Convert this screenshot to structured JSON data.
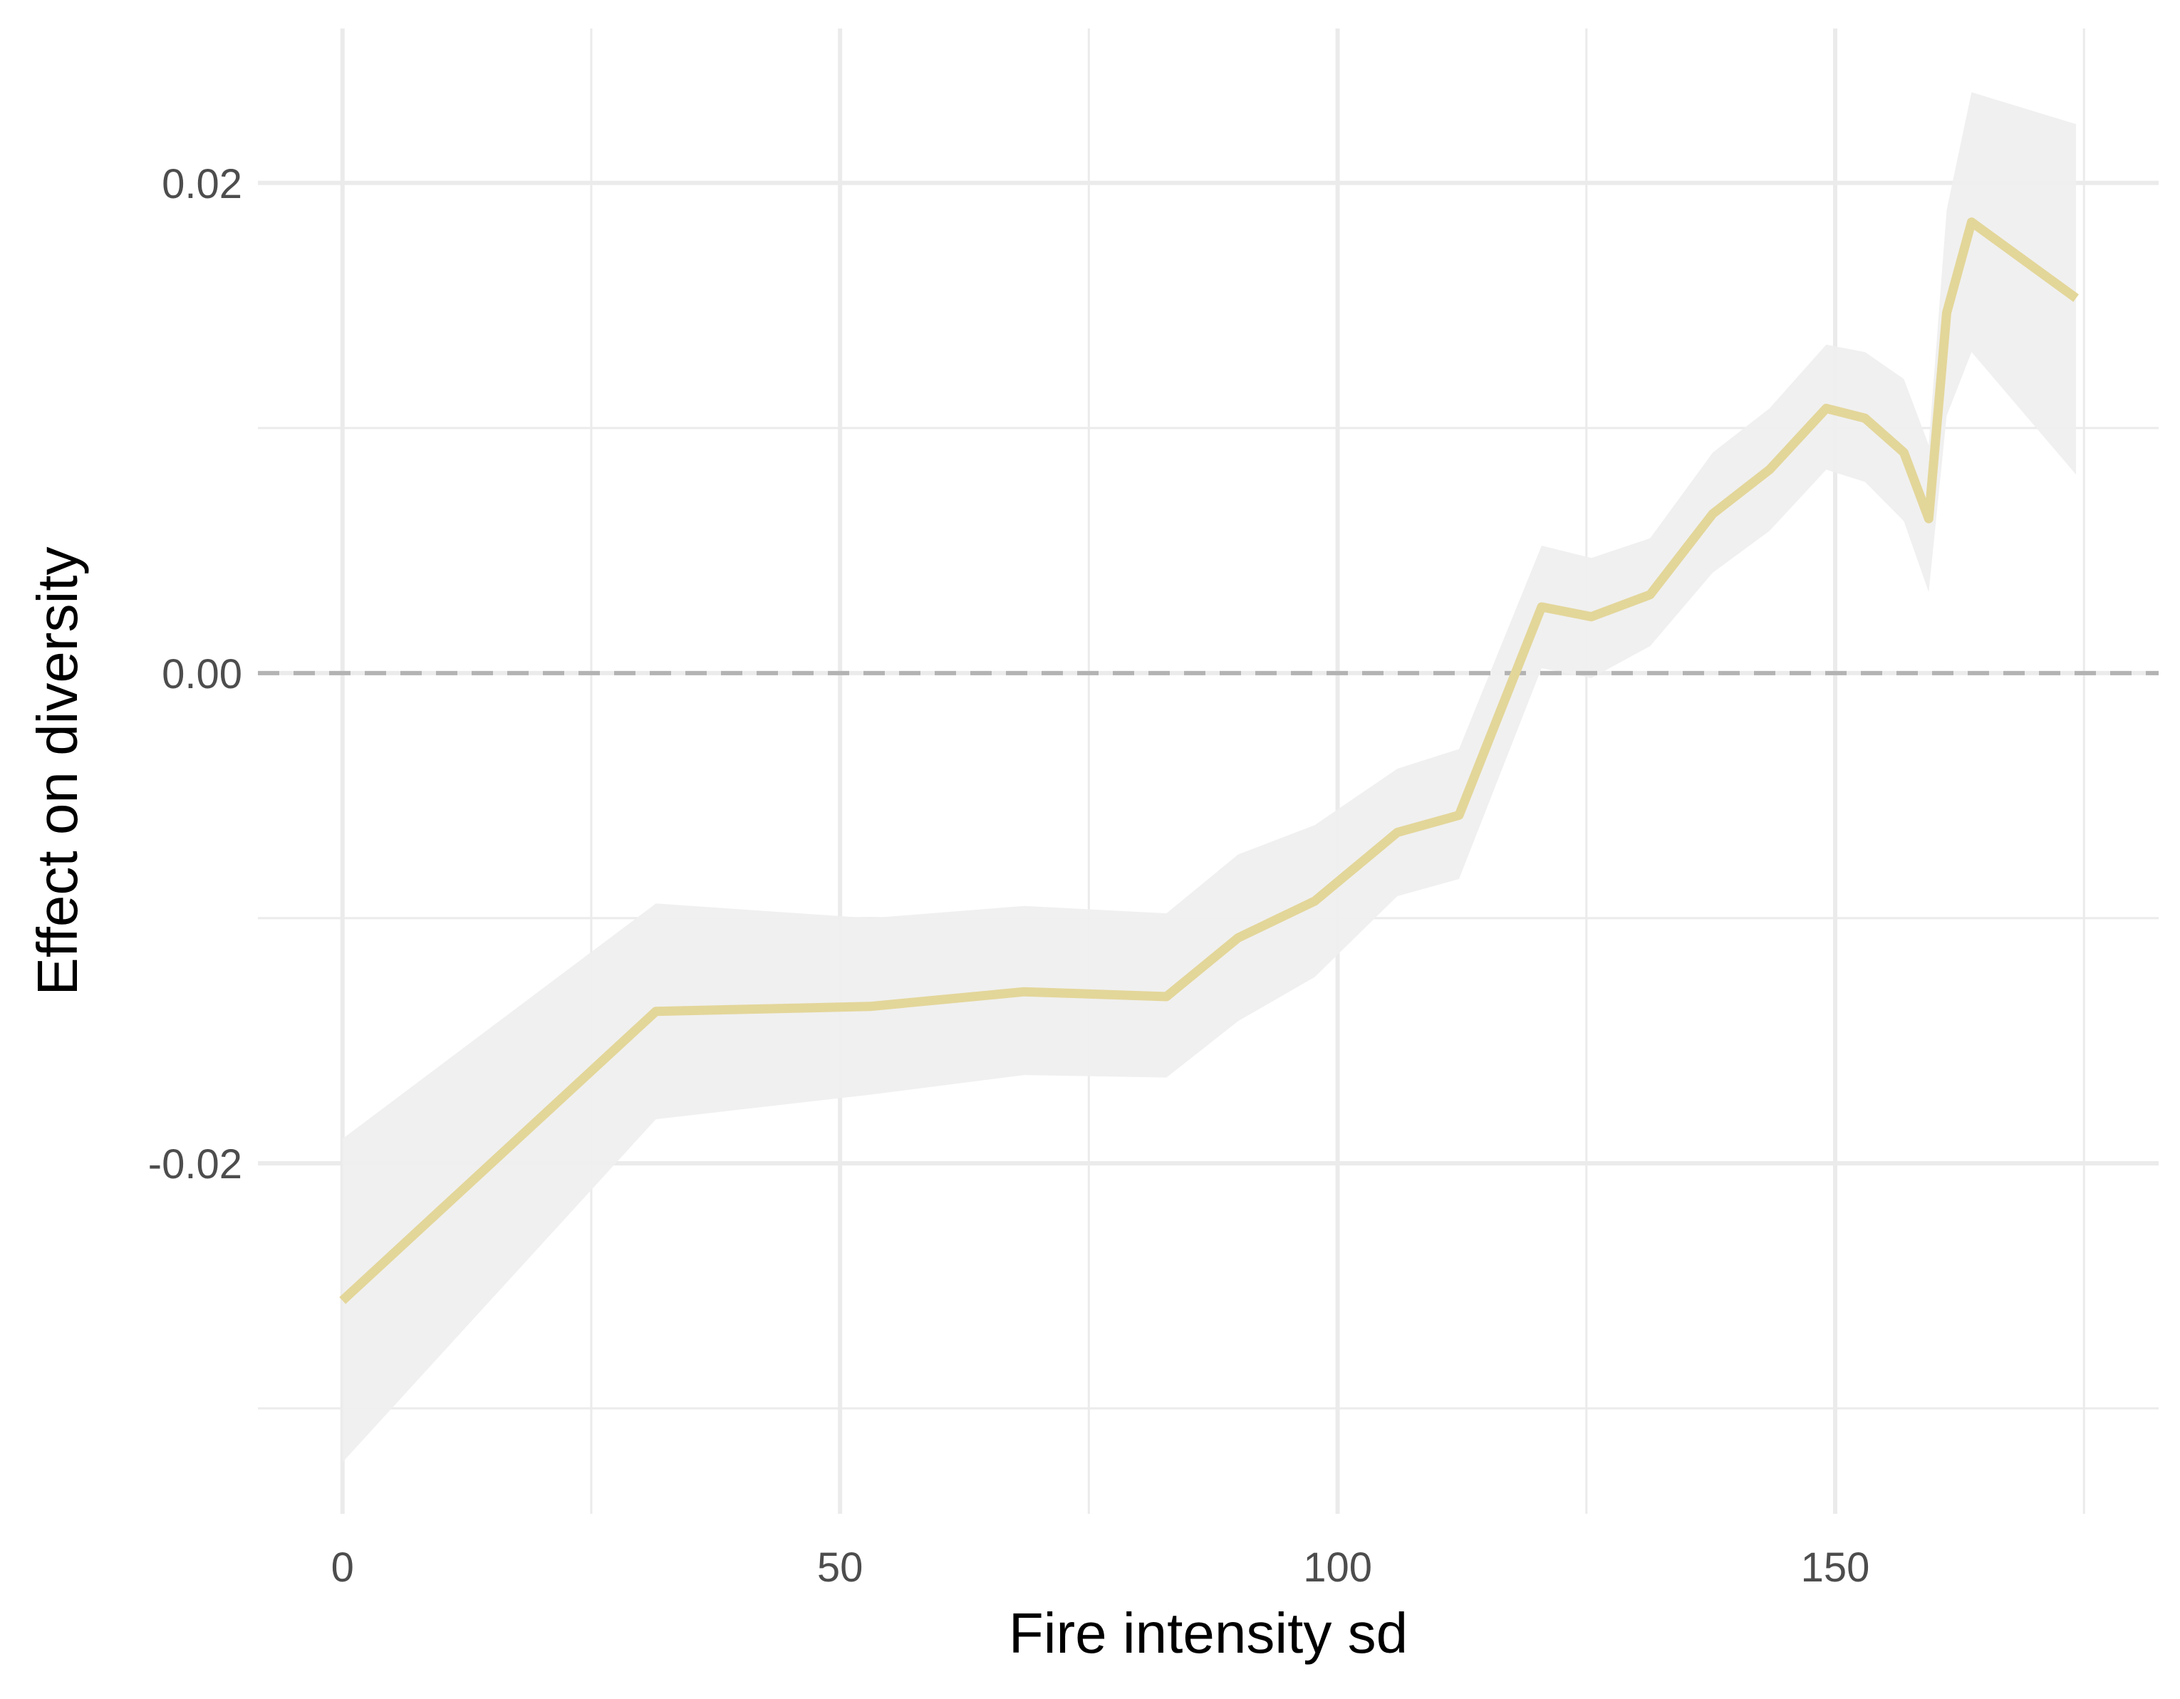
{
  "chart_data": {
    "type": "line",
    "title": "",
    "xlabel": "Fire intensity sd",
    "ylabel": "Effect on diversity",
    "xlim": [
      -8.5,
      182.5
    ],
    "ylim": [
      -0.0343,
      0.0263
    ],
    "x_ticks": [
      0,
      50,
      100,
      150
    ],
    "x_tick_labels": [
      "0",
      "50",
      "100",
      "150"
    ],
    "y_ticks": [
      -0.02,
      0.0,
      0.02
    ],
    "y_tick_labels": [
      "-0.02",
      "0.00",
      "0.02"
    ],
    "x_minor_ticks": [
      25,
      75,
      125,
      175
    ],
    "y_minor_ticks": [
      -0.03,
      -0.01,
      0.01
    ],
    "grid": true,
    "reference_line": {
      "y": 0,
      "style": "dashed",
      "color": "#b3b3b3"
    },
    "series": [
      {
        "color": "#e3d699",
        "ribbon_color": "#efefef",
        "points": [
          {
            "x": 0.0,
            "y": -0.0256,
            "lo": -0.0322,
            "hi": -0.019
          },
          {
            "x": 31.5,
            "y": -0.0138,
            "lo": -0.0182,
            "hi": -0.0094
          },
          {
            "x": 53.0,
            "y": -0.0136,
            "lo": -0.0172,
            "hi": -0.01
          },
          {
            "x": 68.5,
            "y": -0.013,
            "lo": -0.0164,
            "hi": -0.0095
          },
          {
            "x": 82.8,
            "y": -0.0132,
            "lo": -0.0165,
            "hi": -0.0098
          },
          {
            "x": 90.0,
            "y": -0.0108,
            "lo": -0.0142,
            "hi": -0.0074
          },
          {
            "x": 97.7,
            "y": -0.0093,
            "lo": -0.0124,
            "hi": -0.0062
          },
          {
            "x": 106.0,
            "y": -0.0065,
            "lo": -0.0091,
            "hi": -0.0039
          },
          {
            "x": 112.2,
            "y": -0.0058,
            "lo": -0.0084,
            "hi": -0.0031
          },
          {
            "x": 120.5,
            "y": 0.0027,
            "lo": 0.0002,
            "hi": 0.0052
          },
          {
            "x": 125.5,
            "y": 0.0023,
            "lo": -0.0002,
            "hi": 0.0047
          },
          {
            "x": 131.4,
            "y": 0.0032,
            "lo": 0.0011,
            "hi": 0.0055
          },
          {
            "x": 137.7,
            "y": 0.0065,
            "lo": 0.0041,
            "hi": 0.009
          },
          {
            "x": 143.4,
            "y": 0.0083,
            "lo": 0.0058,
            "hi": 0.0108
          },
          {
            "x": 149.1,
            "y": 0.0108,
            "lo": 0.0083,
            "hi": 0.0134
          },
          {
            "x": 153.0,
            "y": 0.0104,
            "lo": 0.0078,
            "hi": 0.0131
          },
          {
            "x": 156.9,
            "y": 0.009,
            "lo": 0.0062,
            "hi": 0.012
          },
          {
            "x": 159.4,
            "y": 0.0063,
            "lo": 0.0033,
            "hi": 0.0093
          },
          {
            "x": 161.2,
            "y": 0.0147,
            "lo": 0.0105,
            "hi": 0.0189
          },
          {
            "x": 163.7,
            "y": 0.0184,
            "lo": 0.0131,
            "hi": 0.0237
          },
          {
            "x": 174.2,
            "y": 0.0153,
            "lo": 0.0081,
            "hi": 0.0224
          }
        ]
      }
    ]
  }
}
